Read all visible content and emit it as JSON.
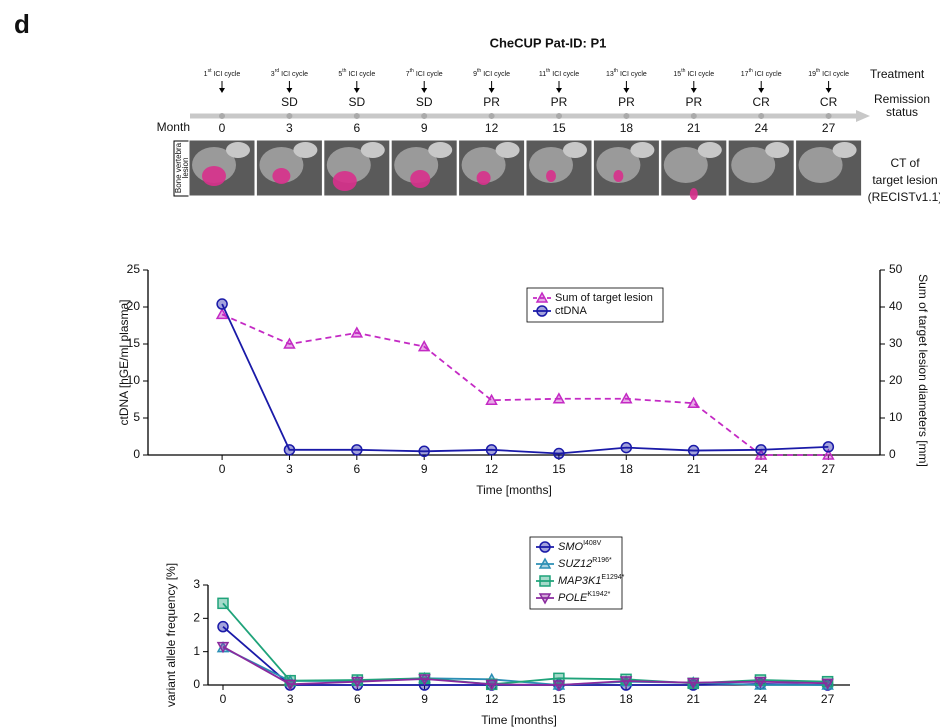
{
  "panel_label": "d",
  "title": "CheCUP Pat-ID: P1",
  "timeline": {
    "treatment_label": "Treatment",
    "status_label": [
      "Remission",
      "status"
    ],
    "month_label": "Month",
    "months": [
      "0",
      "3",
      "6",
      "9",
      "12",
      "15",
      "18",
      "21",
      "24",
      "27"
    ],
    "treatments": [
      {
        "num": "1",
        "sup": "st",
        "text": "ICI cycle"
      },
      {
        "num": "3",
        "sup": "rd",
        "text": "ICI cycle"
      },
      {
        "num": "5",
        "sup": "th",
        "text": "ICI cycle"
      },
      {
        "num": "7",
        "sup": "th",
        "text": "ICI cycle"
      },
      {
        "num": "9",
        "sup": "th",
        "text": "ICI cycle"
      },
      {
        "num": "11",
        "sup": "th",
        "text": "ICI cycle"
      },
      {
        "num": "13",
        "sup": "th",
        "text": "ICI cycle"
      },
      {
        "num": "15",
        "sup": "th",
        "text": "ICI cycle"
      },
      {
        "num": "17",
        "sup": "th",
        "text": "ICI cycle"
      },
      {
        "num": "19",
        "sup": "th",
        "text": "ICI cycle"
      }
    ],
    "statuses": [
      null,
      "SD",
      "SD",
      "SD",
      "PR",
      "PR",
      "PR",
      "PR",
      "CR",
      "CR"
    ],
    "ct_side_label": [
      "Bone vertebra",
      "lesion"
    ],
    "ct_label": [
      "CT of",
      "target lesion",
      "(RECISTv1.1)"
    ]
  },
  "chart_data": [
    {
      "type": "line",
      "x": [
        0,
        3,
        6,
        9,
        12,
        15,
        18,
        21,
        24,
        27
      ],
      "xlim": [
        -3.3,
        29.3
      ],
      "xticks": [
        0,
        3,
        6,
        9,
        12,
        15,
        18,
        21,
        24,
        27
      ],
      "ylim": [
        0,
        25
      ],
      "yticks": [
        0,
        5,
        10,
        15,
        20,
        25
      ],
      "y2lim": [
        0,
        50
      ],
      "y2ticks": [
        0,
        10,
        20,
        30,
        40,
        50
      ],
      "xlabel": "Time [months]",
      "ylabel": "ctDNA [hGE/ml plasma]",
      "y2label": "Sum of target lesion diameters [mm]",
      "series": [
        {
          "name": "Sum of target lesion",
          "color": "#c42ac4",
          "marker": "triangle",
          "dashed": true,
          "axis": "y2",
          "values": [
            38,
            30,
            33,
            29.3,
            14.8,
            15.2,
            15.2,
            14,
            0,
            0
          ]
        },
        {
          "name": "ctDNA",
          "color": "#1a1aa8",
          "marker": "circle",
          "dashed": false,
          "values": [
            20.4,
            0.7,
            0.7,
            0.5,
            0.7,
            0.2,
            1.0,
            0.6,
            0.7,
            1.1
          ]
        }
      ]
    },
    {
      "type": "line",
      "x": [
        0,
        3,
        6,
        9,
        12,
        15,
        18,
        21,
        24,
        27
      ],
      "xlim": [
        -0.67,
        28
      ],
      "xticks": [
        0,
        3,
        6,
        9,
        12,
        15,
        18,
        21,
        24,
        27
      ],
      "ylim": [
        0,
        3
      ],
      "yticks": [
        0,
        1,
        2,
        3
      ],
      "xlabel": "Time [months]",
      "ylabel": "variant allele frequency [%]",
      "series": [
        {
          "name": "SMO",
          "name_sup": "I408V",
          "color": "#1a1aa8",
          "marker": "circle",
          "values": [
            1.75,
            0,
            0,
            0,
            0,
            0,
            0,
            0,
            0.03,
            0
          ]
        },
        {
          "name": "SUZ12",
          "name_sup": "R196*",
          "color": "#2b8fb5",
          "marker": "triangle",
          "values": [
            1.12,
            0.12,
            0.12,
            0.2,
            0.17,
            0,
            0.1,
            0.07,
            0,
            0
          ]
        },
        {
          "name": "MAP3K1",
          "name_sup": "E1294*",
          "color": "#1fa37a",
          "marker": "square",
          "values": [
            2.45,
            0.13,
            0.15,
            0.2,
            0.02,
            0.2,
            0.17,
            0.05,
            0.15,
            0.1
          ]
        },
        {
          "name": "POLE",
          "name_sup": "K1942*",
          "color": "#8a2a9e",
          "marker": "triangle-down",
          "values": [
            1.15,
            0.02,
            0.1,
            0.18,
            0.02,
            0,
            0.12,
            0.07,
            0.1,
            0.05
          ]
        }
      ]
    }
  ]
}
